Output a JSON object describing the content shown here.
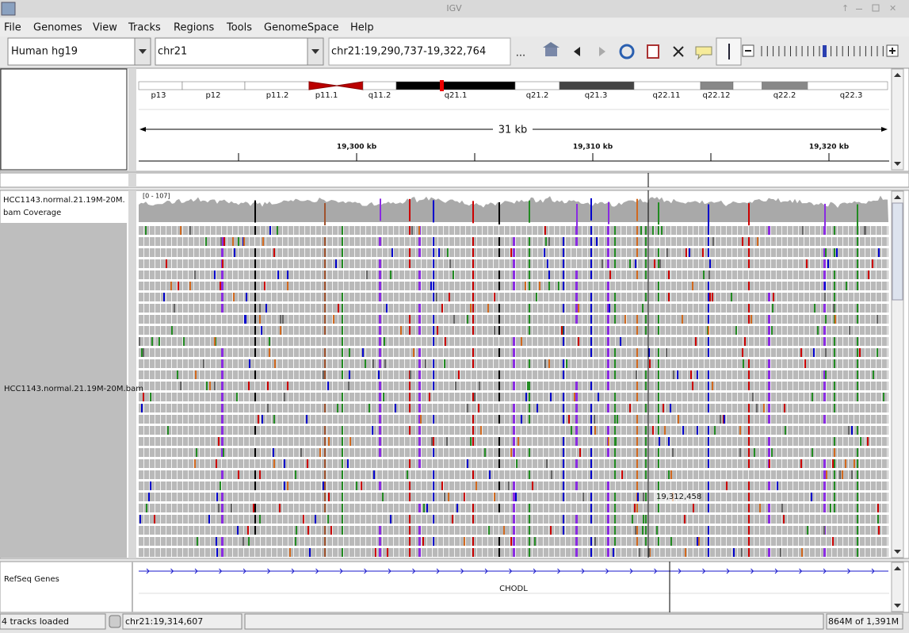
{
  "window": {
    "title": "IGV"
  },
  "menu": [
    "File",
    "Genomes",
    "View",
    "Tracks",
    "Regions",
    "Tools",
    "GenomeSpace",
    "Help"
  ],
  "toolbar": {
    "genome": "Human hg19",
    "chromosome": "chr21",
    "locus": "chr21:19,290,737-19,322,764",
    "more": "..."
  },
  "ideogram": {
    "bands": [
      "p13",
      "p12",
      "p11.2",
      "p11.1",
      "q11.2",
      "q21.1",
      "q21.2",
      "q21.3",
      "q22.11",
      "q22.12",
      "q22.2",
      "q22.3"
    ]
  },
  "ruler": {
    "span": "31 kb",
    "ticks": [
      "19,300 kb",
      "19,310 kb",
      "19,320 kb"
    ]
  },
  "tracks": {
    "coverage": {
      "name": "HCC1143.normal.21.19M-20M.bam Coverage",
      "range": "[0 - 107]"
    },
    "alignments": {
      "name": "HCC1143.normal.21.19M-20M.bam",
      "position": "19,312,458"
    },
    "genes": {
      "name": "RefSeq Genes",
      "gene": "CHODL"
    }
  },
  "status": {
    "message": "4 tracks loaded",
    "position": "chr21:19,314,607",
    "memory": "864M of 1,391M"
  }
}
